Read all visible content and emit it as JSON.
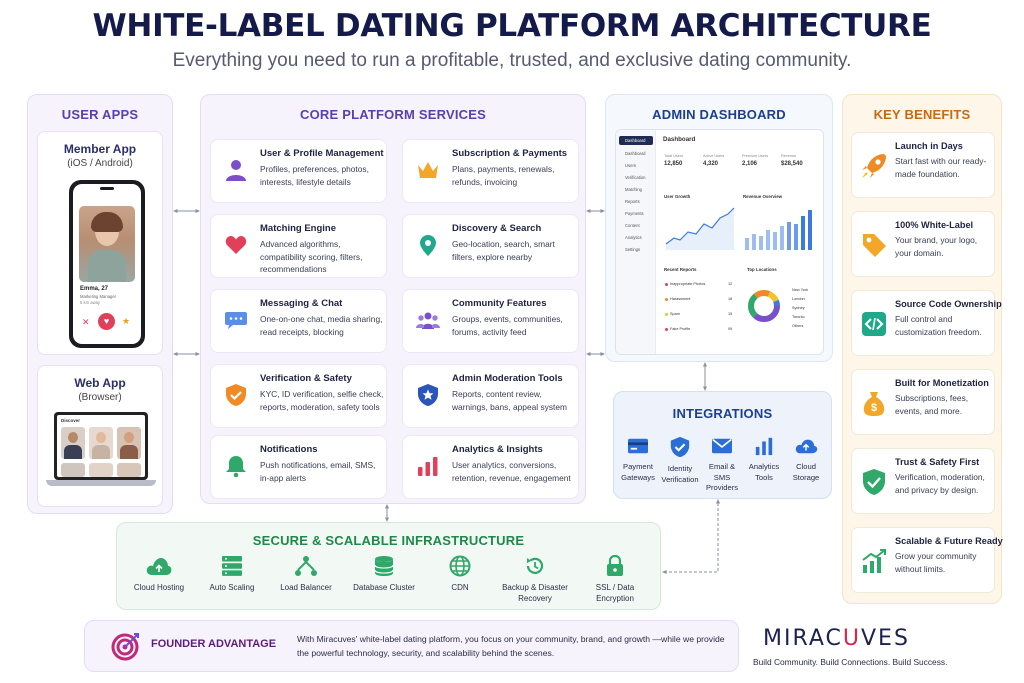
{
  "header": {
    "title": "WHITE-LABEL DATING PLATFORM ARCHITECTURE",
    "subtitle": "Everything you need to run a profitable, trusted, and exclusive dating community."
  },
  "user_apps": {
    "title": "USER APPS",
    "member_app": {
      "name": "Member App",
      "platform": "(iOS / Android)",
      "profile_name": "Emma, 27",
      "profile_role": "Marketing Manager",
      "profile_distance": "5 km away"
    },
    "web_app": {
      "name": "Web App",
      "platform": "(Browser)",
      "screen_title": "Discover"
    }
  },
  "core": {
    "title": "CORE PLATFORM SERVICES",
    "services": [
      {
        "title": "User & Profile Management",
        "desc": "Profiles, preferences, photos, interests, lifestyle details",
        "icon": "user-icon"
      },
      {
        "title": "Subscription & Payments",
        "desc": "Plans, payments, renewals, refunds, invoicing",
        "icon": "crown-icon"
      },
      {
        "title": "Matching Engine",
        "desc": "Advanced algorithms, compatibility scoring, filters, recommendations",
        "icon": "heart-icon"
      },
      {
        "title": "Discovery & Search",
        "desc": "Geo-location, search, smart filters, explore nearby",
        "icon": "location-pin-icon"
      },
      {
        "title": "Messaging & Chat",
        "desc": "One-on-one chat, media sharing, read receipts, blocking",
        "icon": "chat-bubble-icon"
      },
      {
        "title": "Community Features",
        "desc": "Groups, events, communities, forums, activity feed",
        "icon": "group-icon"
      },
      {
        "title": "Verification & Safety",
        "desc": "KYC, ID verification, selfie check, reports, moderation, safety tools",
        "icon": "shield-check-icon"
      },
      {
        "title": "Admin Moderation Tools",
        "desc": "Reports, content review, warnings, bans, appeal system",
        "icon": "shield-star-icon"
      },
      {
        "title": "Notifications",
        "desc": "Push notifications, email, SMS, in-app alerts",
        "icon": "bell-icon"
      },
      {
        "title": "Analytics & Insights",
        "desc": "User analytics, conversions, retention, revenue, engagement",
        "icon": "bar-chart-icon"
      }
    ]
  },
  "admin": {
    "title": "ADMIN DASHBOARD",
    "dashboard": {
      "heading": "Dashboard",
      "nav": [
        "Dashboard",
        "Users",
        "Verification",
        "Matching",
        "Reports",
        "Payments",
        "Content",
        "Analytics",
        "Settings"
      ],
      "stats": [
        {
          "label": "Total Users",
          "value": "12,850"
        },
        {
          "label": "Active Users",
          "value": "4,320"
        },
        {
          "label": "Premium Users",
          "value": "2,106"
        },
        {
          "label": "Revenue",
          "value": "$28,540"
        }
      ],
      "user_growth_label": "User Growth",
      "revenue_label": "Revenue Overview",
      "recent_reports_label": "Recent Reports",
      "reports": [
        {
          "name": "Inappropriate Photos",
          "count": "12"
        },
        {
          "name": "Harassment",
          "count": "18"
        },
        {
          "name": "Spam",
          "count": "15"
        },
        {
          "name": "Fake Profile",
          "count": "09"
        }
      ],
      "top_locations_label": "Top Locations",
      "locations": [
        "New York",
        "London",
        "Sydney",
        "Toronto",
        "Others"
      ]
    }
  },
  "integrations": {
    "title": "INTEGRATIONS",
    "items": [
      {
        "label": "Payment Gateways",
        "icon": "payment-card-icon"
      },
      {
        "label": "Identity Verification",
        "icon": "identity-shield-icon"
      },
      {
        "label": "Email & SMS Providers",
        "icon": "envelope-icon"
      },
      {
        "label": "Analytics Tools",
        "icon": "analytics-icon"
      },
      {
        "label": "Cloud Storage",
        "icon": "cloud-upload-icon"
      }
    ]
  },
  "benefits": {
    "title": "KEY BENEFITS",
    "items": [
      {
        "title": "Launch in Days",
        "desc": "Start fast with our ready-made foundation.",
        "icon": "rocket-icon"
      },
      {
        "title": "100% White-Label",
        "desc": "Your brand, your logo, your domain.",
        "icon": "tag-icon"
      },
      {
        "title": "Source Code Ownership",
        "desc": "Full control and customization freedom.",
        "icon": "code-icon"
      },
      {
        "title": "Built for Monetization",
        "desc": "Subscriptions, fees, events, and more.",
        "icon": "money-bag-icon"
      },
      {
        "title": "Trust & Safety First",
        "desc": "Verification, moderation, and privacy by design.",
        "icon": "shield-check-icon"
      },
      {
        "title": "Scalable & Future Ready",
        "desc": "Grow your community without limits.",
        "icon": "growth-chart-icon"
      }
    ]
  },
  "infra": {
    "title": "SECURE & SCALABLE INFRASTRUCTURE",
    "items": [
      {
        "label": "Cloud Hosting",
        "icon": "cloud-icon"
      },
      {
        "label": "Auto Scaling",
        "icon": "server-stack-icon"
      },
      {
        "label": "Load Balancer",
        "icon": "load-balancer-icon"
      },
      {
        "label": "Database Cluster",
        "icon": "database-icon"
      },
      {
        "label": "CDN",
        "icon": "globe-icon"
      },
      {
        "label": "Backup & Disaster Recovery",
        "icon": "backup-icon"
      },
      {
        "label": "SSL / Data Encryption",
        "icon": "lock-icon"
      }
    ]
  },
  "founder": {
    "title": "FOUNDER ADVANTAGE",
    "text": "With Miracuves' white-label dating platform, you focus on your community, brand, and growth —while we provide the powerful technology, security, and scalability behind the scenes."
  },
  "brand": {
    "name_part1": "MIRAC",
    "name_accent": "U",
    "name_part2": "VES",
    "tagline": "Build Community. Build Connections. Build Success."
  },
  "colors": {
    "purple": "#6b4bd0",
    "navy": "#141a4a",
    "green": "#1d8a4a",
    "orange": "#f08a24",
    "blue": "#2b6fd6",
    "red": "#e0405a"
  }
}
